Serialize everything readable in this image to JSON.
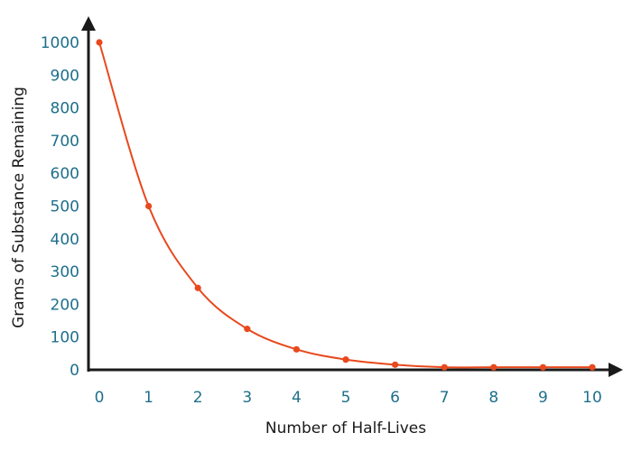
{
  "chart_data": {
    "type": "line",
    "title": "",
    "xlabel": "Number of Half-Lives",
    "ylabel": "Grams of Substance Remaining",
    "x": [
      0,
      1,
      2,
      3,
      4,
      5,
      6,
      7,
      8,
      9,
      10
    ],
    "series": [
      {
        "name": "",
        "values": [
          1000,
          500,
          250,
          125,
          62.5,
          31.25,
          15.6,
          7.8,
          7.8,
          7.8,
          7.8
        ]
      }
    ],
    "x_ticks": [
      "0",
      "1",
      "2",
      "3",
      "4",
      "5",
      "6",
      "7",
      "8",
      "9",
      "10"
    ],
    "y_ticks": [
      "0",
      "100",
      "200",
      "300",
      "400",
      "500",
      "600",
      "700",
      "800",
      "900",
      "1000"
    ],
    "xlim": [
      0,
      10
    ],
    "ylim": [
      0,
      1000
    ],
    "grid": false,
    "legend": "none",
    "colors": {
      "line": "#e8491d",
      "marker": "#e8491d",
      "axis": "#1a1a1a",
      "tick_label": "#1f6f8b",
      "axis_title": "#1a1a1a"
    }
  }
}
